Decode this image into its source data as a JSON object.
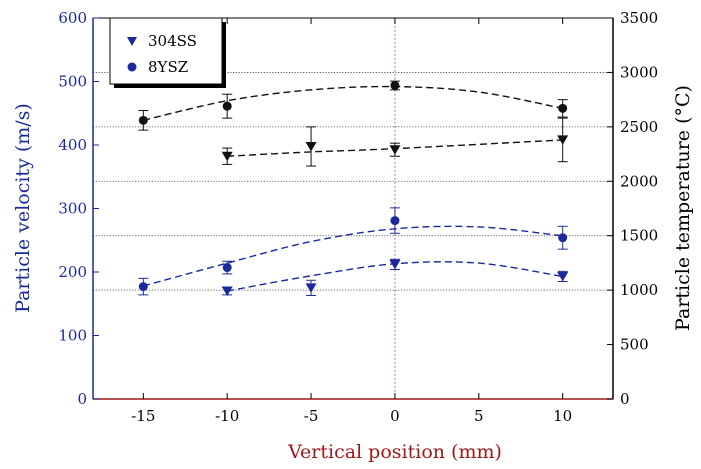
{
  "chart_data": {
    "type": "scatter",
    "xlabel": "Vertical position (mm)",
    "ylabel_left": "Particle velocity (m/s)",
    "ylabel_right": "Particle temperature (°C)",
    "xlim": [
      -18,
      13
    ],
    "xticks": [
      -15,
      -10,
      -5,
      0,
      5,
      10
    ],
    "ylim_left": [
      0,
      600
    ],
    "yticks_left": [
      0,
      100,
      200,
      300,
      400,
      500,
      600
    ],
    "ylim_right": [
      0,
      3500
    ],
    "yticks_right": [
      0,
      500,
      1000,
      1500,
      2000,
      2500,
      3000,
      3500
    ],
    "legend": {
      "position": "top-left",
      "entries": [
        "304SS",
        "8YSZ"
      ]
    },
    "reference_line_x": 0,
    "gridlines_right_axis": [
      1000,
      1500,
      2000,
      2500,
      3000
    ],
    "series": [
      {
        "name": "304SS",
        "marker": "triangle-down",
        "quantity": "velocity",
        "axis": "left",
        "color": "#1a2a9c",
        "x": [
          -10,
          -5,
          0,
          10
        ],
        "y": [
          170,
          175,
          212,
          193
        ],
        "err": [
          6,
          12,
          8,
          8
        ]
      },
      {
        "name": "8YSZ",
        "marker": "circle",
        "quantity": "velocity",
        "axis": "left",
        "color": "#1a2a9c",
        "x": [
          -15,
          -10,
          0,
          10
        ],
        "y": [
          177,
          207,
          281,
          254
        ],
        "err": [
          13,
          10,
          20,
          18
        ]
      },
      {
        "name": "304SS",
        "marker": "triangle-down",
        "quantity": "temperature",
        "axis": "right",
        "color": "#111111",
        "x": [
          -10,
          -5,
          0,
          10
        ],
        "y": [
          2230,
          2320,
          2290,
          2380
        ],
        "err": [
          75,
          180,
          60,
          200
        ]
      },
      {
        "name": "8YSZ",
        "marker": "circle",
        "quantity": "temperature",
        "axis": "right",
        "color": "#111111",
        "x": [
          -15,
          -10,
          0,
          10
        ],
        "y": [
          2560,
          2690,
          2880,
          2670
        ],
        "err": [
          90,
          110,
          40,
          80
        ]
      }
    ],
    "fits": [
      {
        "quantity": "velocity",
        "series": "8YSZ",
        "axis": "left",
        "color": "#1a2a9c",
        "x": [
          -15,
          -10,
          -5,
          0,
          5,
          10
        ],
        "y": [
          178,
          214,
          248,
          268,
          271,
          257
        ]
      },
      {
        "quantity": "velocity",
        "series": "304SS",
        "axis": "left",
        "color": "#1a2a9c",
        "x": [
          -10,
          -5,
          0,
          5,
          10
        ],
        "y": [
          170,
          194,
          213,
          214,
          193
        ]
      },
      {
        "quantity": "temperature",
        "series": "8YSZ",
        "axis": "right",
        "color": "#111111",
        "x": [
          -15,
          -10,
          -5,
          0,
          5,
          10
        ],
        "y": [
          2560,
          2740,
          2840,
          2870,
          2820,
          2670
        ]
      },
      {
        "quantity": "temperature",
        "series": "304SS",
        "axis": "right",
        "color": "#111111",
        "x": [
          -10,
          -5,
          0,
          10
        ],
        "y": [
          2230,
          2270,
          2300,
          2380
        ]
      }
    ],
    "colors": {
      "left_axis": "#1a2a9c",
      "x_axis_label": "#a01818",
      "reference_line": "#c04040",
      "right_axis": "#000000"
    }
  }
}
